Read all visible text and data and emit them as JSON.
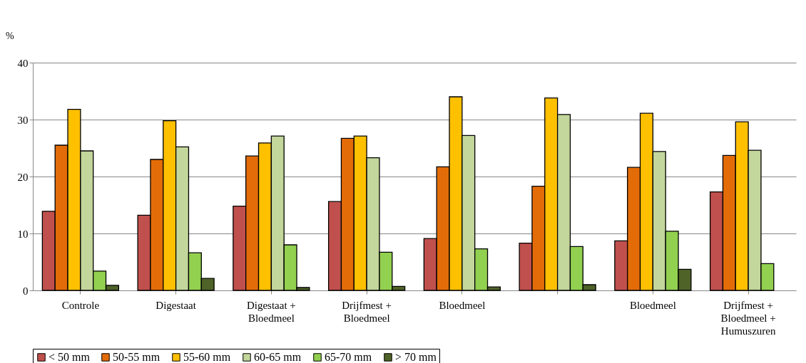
{
  "chart_data": {
    "type": "bar",
    "ylabel": "%",
    "categories": [
      "Controle",
      "Digestaat",
      "Digestaat + Bloedmeel",
      "Drijfmest + Bloedmeel",
      "Bloedmeel",
      null,
      "Bloedmeel",
      "Drijfmest + Bloedmeel + Humuszuren"
    ],
    "series": [
      {
        "name": "< 50 mm",
        "color": "#c0504d",
        "values": [
          13.9,
          13.2,
          14.8,
          15.6,
          9.1,
          8.3,
          8.7,
          17.3
        ]
      },
      {
        "name": "50-55 mm",
        "color": "#e36c09",
        "values": [
          25.5,
          23.0,
          23.6,
          26.7,
          21.7,
          18.3,
          21.6,
          23.7
        ]
      },
      {
        "name": "55-60 mm",
        "color": "#ffc000",
        "values": [
          31.8,
          29.8,
          25.9,
          27.1,
          34.0,
          33.8,
          31.1,
          29.6
        ]
      },
      {
        "name": "60-65 mm",
        "color": "#c3d69b",
        "values": [
          24.5,
          25.2,
          27.1,
          23.3,
          27.2,
          30.9,
          24.4,
          24.6
        ]
      },
      {
        "name": "65-70 mm",
        "color": "#92d050",
        "values": [
          3.4,
          6.6,
          8.0,
          6.7,
          7.3,
          7.7,
          10.4,
          4.7
        ]
      },
      {
        "name": "> 70 mm",
        "color": "#4f6228",
        "values": [
          0.9,
          2.1,
          0.5,
          0.7,
          0.6,
          1.0,
          3.7,
          null
        ]
      }
    ],
    "ylim": [
      0,
      40
    ],
    "yticks": [
      0,
      10,
      20,
      30,
      40
    ],
    "grid": "y",
    "legend": "bottom"
  }
}
